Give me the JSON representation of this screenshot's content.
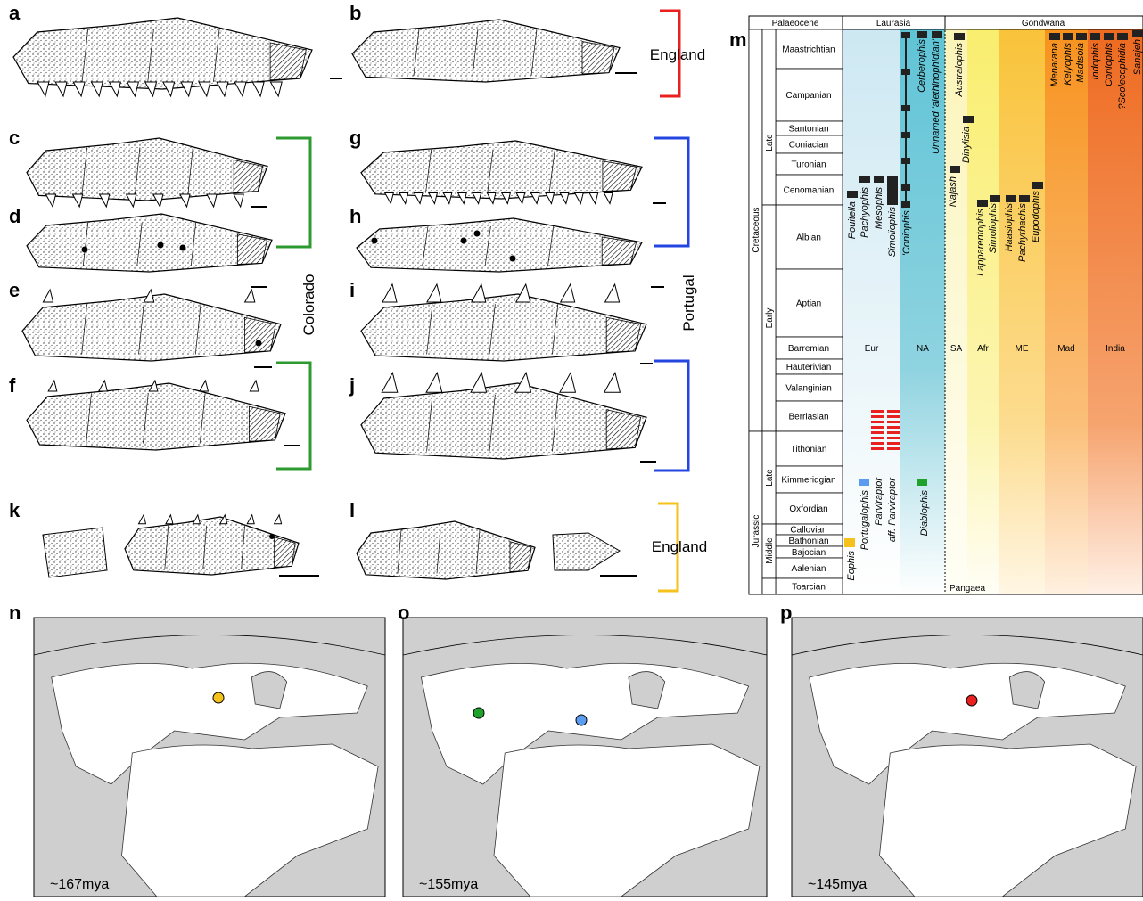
{
  "panel_labels": [
    "a",
    "b",
    "c",
    "d",
    "e",
    "f",
    "g",
    "h",
    "i",
    "j",
    "k",
    "l",
    "m",
    "n",
    "o",
    "p"
  ],
  "specimen_groups": [
    "England",
    "Colorado",
    "Portugal",
    "England"
  ],
  "timescale": {
    "header": [
      "Palaeocene",
      "Laurasia",
      "Gondwana"
    ],
    "periods": [
      "Cretaceous",
      "Jurassic"
    ],
    "epochs": [
      "Late",
      "Early",
      "Late",
      "Middle"
    ],
    "stages": [
      "Maastrichtian",
      "Campanian",
      "Santonian",
      "Coniacian",
      "Turonian",
      "Cenomanian",
      "Albian",
      "Aptian",
      "Barremian",
      "Hauterivian",
      "Valanginian",
      "Berriasian",
      "Tithonian",
      "Kimmeridgian",
      "Oxfordian",
      "Callovian",
      "Bathonian",
      "Bajocian",
      "Aalenian",
      "Toarcian"
    ],
    "regions": [
      "Eur",
      "NA",
      "SA",
      "Afr",
      "ME",
      "Mad",
      "India"
    ],
    "taxa": [
      "Pouitella",
      "Pachyophis",
      "Mesophis",
      "Simoliophis",
      "'Coniophis'",
      "Cerberophis",
      "Unnamed 'alethinophidian'",
      "Eophis",
      "Portugalophis",
      "Parviraptor",
      "aff. Parviraptor",
      "Diablophis",
      "Najash",
      "Dinylisia",
      "Australophis",
      "Lapparentophis",
      "Simoliophis",
      "Haasiophis",
      "Pachyrhachis",
      "Eupodophis",
      "Menarana",
      "Kelyophis",
      "Madtsoia",
      "Indophis",
      "Coniophis",
      "?Scolecophidia",
      "Sanajeh"
    ],
    "supercontinent": "Pangaea"
  },
  "maps": [
    {
      "age": "~167mya"
    },
    {
      "age": "~155mya"
    },
    {
      "age": "~145mya"
    }
  ]
}
